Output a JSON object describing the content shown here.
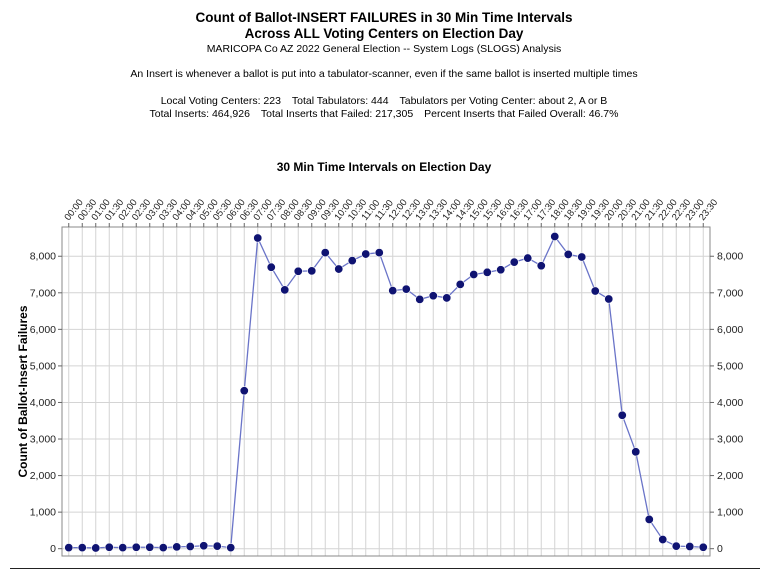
{
  "header": {
    "title_line1": "Count of Ballot-INSERT FAILURES in 30 Min Time Intervals",
    "title_line2": "Across ALL Voting Centers on Election Day",
    "subtitle": "MARICOPA Co AZ 2022 General Election -- System Logs (SLOGS) Analysis",
    "note": "An Insert is whenever a ballot is put into a tabulator-scanner, even if the same ballot is inserted multiple times",
    "stats_line1": [
      "Local Voting Centers: 223",
      "Total Tabulators: 444",
      "Tabulators per Voting Center: about 2, A or B"
    ],
    "stats_line2": [
      "Total Inserts: 464,926",
      "Total Inserts that Failed: 217,305",
      "Percent Inserts that Failed Overall: 46.7%"
    ]
  },
  "chart_data": {
    "type": "line",
    "title": "30 Min Time Intervals on Election Day",
    "xlabel": "30 Min Time Intervals on Election Day",
    "ylabel": "Count of Ballot-Insert Failures",
    "x": [
      "00:00",
      "00:30",
      "01:00",
      "01:30",
      "02:00",
      "02:30",
      "03:00",
      "03:30",
      "04:00",
      "04:30",
      "05:00",
      "05:30",
      "06:00",
      "06:30",
      "07:00",
      "07:30",
      "08:00",
      "08:30",
      "09:00",
      "09:30",
      "10:00",
      "10:30",
      "11:00",
      "11:30",
      "12:00",
      "12:30",
      "13:00",
      "13:30",
      "14:00",
      "14:30",
      "15:00",
      "15:30",
      "16:00",
      "16:30",
      "17:00",
      "17:30",
      "18:00",
      "18:30",
      "19:00",
      "19:30",
      "20:00",
      "20:30",
      "21:00",
      "21:30",
      "22:00",
      "22:30",
      "23:00",
      "23:30"
    ],
    "series": [
      {
        "values": [
          30,
          30,
          20,
          40,
          30,
          40,
          40,
          30,
          50,
          60,
          80,
          70,
          30,
          4320,
          8500,
          7700,
          7080,
          7590,
          7600,
          8100,
          7650,
          7880,
          8060,
          8100,
          7060,
          7100,
          6820,
          6920,
          6860,
          7230,
          7500,
          7560,
          7630,
          7840,
          7950,
          7740,
          8540,
          8050,
          7980,
          7050,
          6830,
          3650,
          2650,
          800,
          250,
          70,
          60,
          40
        ]
      }
    ],
    "yticks": [
      0,
      1000,
      2000,
      3000,
      4000,
      5000,
      6000,
      7000,
      8000
    ],
    "ytick_labels": [
      "0",
      "1,000",
      "2,000",
      "3,000",
      "4,000",
      "5,000",
      "6,000",
      "7,000",
      "8,000"
    ],
    "ylim": [
      -200,
      8800
    ],
    "grid": true,
    "secondary_y_axis": true,
    "colors": {
      "line": "#6a74c8",
      "marker": "#0f1372",
      "grid": "#d4d4d4",
      "frame": "#888888"
    }
  }
}
